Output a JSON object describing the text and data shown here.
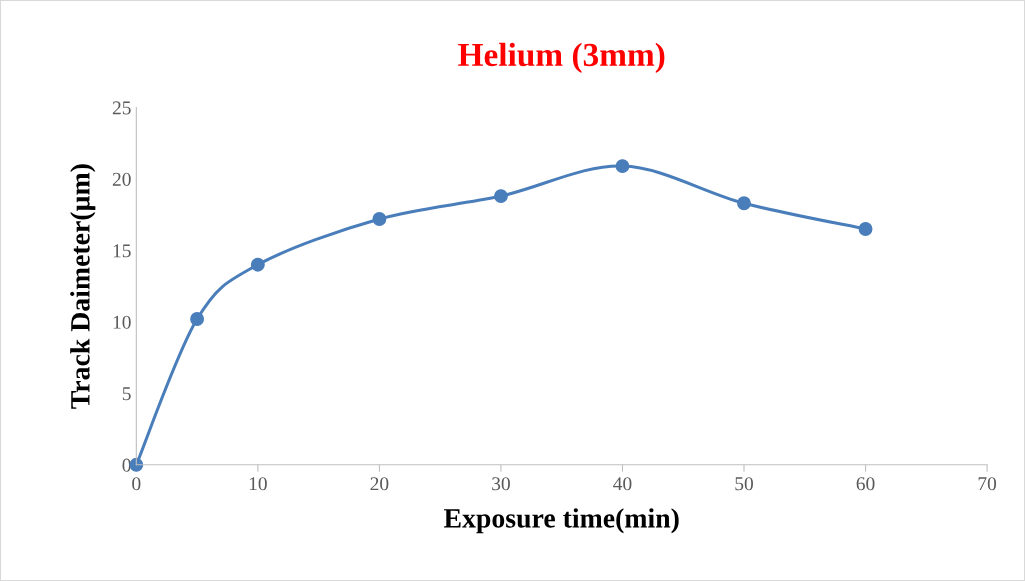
{
  "chart_data": {
    "type": "line",
    "title": "Helium (3mm)",
    "xlabel": "Exposure time(min)",
    "ylabel": "Track Daimeter(µm)",
    "x": [
      0,
      5,
      10,
      20,
      30,
      40,
      50,
      60
    ],
    "series": [
      {
        "color": "#4a7ebb",
        "values": [
          0,
          10.2,
          14.0,
          17.2,
          18.8,
          20.9,
          18.3,
          16.5
        ]
      }
    ],
    "xlim": [
      0,
      70
    ],
    "xticks": [
      0,
      10,
      20,
      30,
      40,
      50,
      60,
      70
    ],
    "ylim": [
      0,
      25
    ],
    "yticks": [
      0,
      5,
      10,
      15,
      20,
      25
    ],
    "grid": false,
    "marker": "circle",
    "line_style": "solid"
  }
}
